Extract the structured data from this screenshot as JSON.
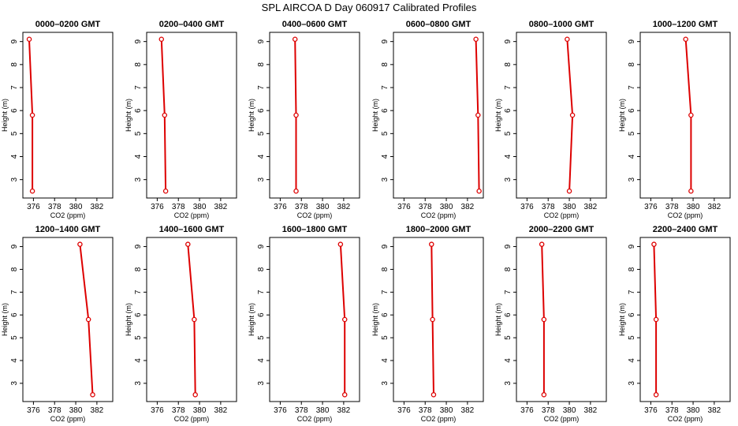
{
  "title": "SPL AIRCOA D  Day 060917  Calibrated Profiles",
  "colors": {
    "series": "#dd0000",
    "axes": "#000000",
    "background": "#ffffff"
  },
  "chart_data": {
    "type": "line",
    "layout": "2x6 small multiples",
    "xlabel": "CO2 (ppm)",
    "ylabel": "Height (m)",
    "xlim": [
      375,
      383.5
    ],
    "ylim": [
      2.2,
      9.4
    ],
    "xticks": [
      "376",
      "378",
      "380",
      "382"
    ],
    "yticks": [
      "3",
      "4",
      "5",
      "6",
      "7",
      "8",
      "9"
    ],
    "heights": [
      2.5,
      5.8,
      9.1
    ],
    "panels": [
      {
        "title": "0000–0200 GMT",
        "co2": [
          375.9,
          375.9,
          375.6
        ]
      },
      {
        "title": "0200–0400 GMT",
        "co2": [
          376.8,
          376.7,
          376.4
        ]
      },
      {
        "title": "0400–0600 GMT",
        "co2": [
          377.5,
          377.5,
          377.4
        ]
      },
      {
        "title": "0600–0800 GMT",
        "co2": [
          383.1,
          383.0,
          382.8
        ]
      },
      {
        "title": "0800–1000 GMT",
        "co2": [
          380.0,
          380.3,
          379.8
        ]
      },
      {
        "title": "1000–1200 GMT",
        "co2": [
          379.8,
          379.8,
          379.3
        ]
      },
      {
        "title": "1200–1400 GMT",
        "co2": [
          381.6,
          381.2,
          380.4
        ]
      },
      {
        "title": "1400–1600 GMT",
        "co2": [
          379.6,
          379.5,
          378.9
        ]
      },
      {
        "title": "1600–1800 GMT",
        "co2": [
          382.1,
          382.1,
          381.7
        ]
      },
      {
        "title": "1800–2000 GMT",
        "co2": [
          378.8,
          378.7,
          378.6
        ]
      },
      {
        "title": "2000–2200 GMT",
        "co2": [
          377.6,
          377.6,
          377.4
        ]
      },
      {
        "title": "2200–2400 GMT",
        "co2": [
          376.5,
          376.5,
          376.3
        ]
      }
    ]
  }
}
